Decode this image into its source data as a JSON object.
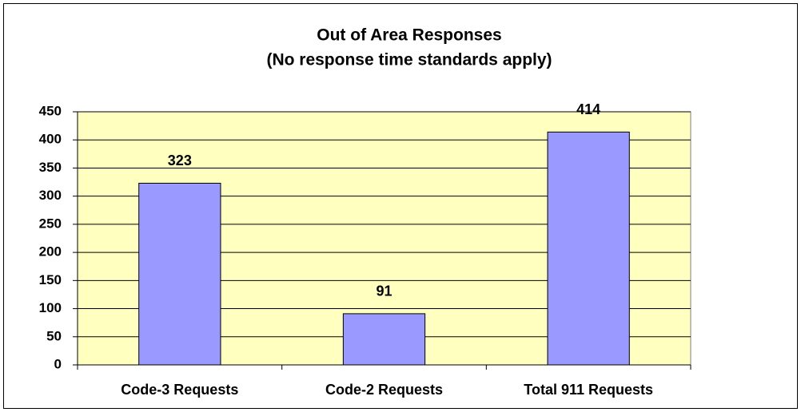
{
  "chart_data": {
    "type": "bar",
    "title": "Out of Area Responses",
    "subtitle": "(No response time standards apply)",
    "categories": [
      "Code-3 Requests",
      "Code-2 Requests",
      "Total 911 Requests"
    ],
    "values": [
      323,
      91,
      414
    ],
    "color": "#9999ff",
    "plot_background": "#ffffc0",
    "ylim": [
      0,
      450
    ],
    "yticks": [
      0,
      50,
      100,
      150,
      200,
      250,
      300,
      350,
      400,
      450
    ],
    "grid": true
  }
}
